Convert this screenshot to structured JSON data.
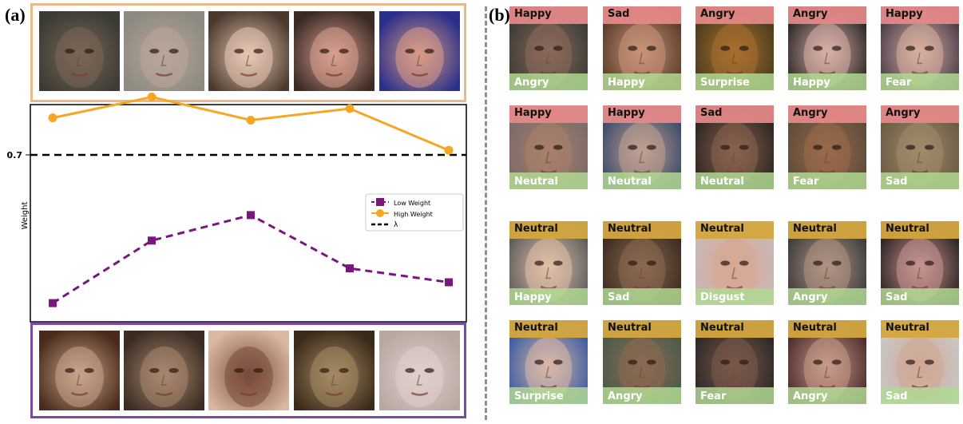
{
  "panel_a": {
    "label": "(a)"
  },
  "panel_b": {
    "label": "(b)"
  },
  "colors": {
    "high": "#f5a623",
    "low": "#7b167e",
    "threshold": "#000000",
    "top_box_border": "#e9b98a",
    "bottom_box_border": "#7b4aa3",
    "tile_top_red": "#e88a8a",
    "tile_top_gold": "#d4a640",
    "tile_bottom_green": "#b0d892"
  },
  "chart_data": {
    "type": "line",
    "x": [
      1,
      2,
      3,
      4,
      5
    ],
    "ylabel": "Weight",
    "threshold": {
      "value": 0.7,
      "label": "0.7",
      "legend": "λ"
    },
    "ylim": [
      0.0,
      1.0
    ],
    "series": [
      {
        "name": "Low Weight",
        "values": [
          0.06,
          0.33,
          0.44,
          0.21,
          0.15
        ],
        "marker": "square",
        "style": "dashed"
      },
      {
        "name": "High Weight",
        "values": [
          0.86,
          0.95,
          0.85,
          0.9,
          0.72
        ],
        "marker": "circle",
        "style": "solid"
      }
    ],
    "legend": [
      "Low Weight",
      "High Weight",
      "λ"
    ],
    "legend_position": "right",
    "grid": false
  },
  "top_faces": [
    {
      "icon": "face-image",
      "c1": "#3b3b34",
      "c2": "#7a6656"
    },
    {
      "icon": "face-image",
      "c1": "#8c8a80",
      "c2": "#b9a59a"
    },
    {
      "icon": "face-image",
      "c1": "#4a3a2e",
      "c2": "#e7c6b4"
    },
    {
      "icon": "face-image",
      "c1": "#3a2a24",
      "c2": "#d9a090"
    },
    {
      "icon": "face-image",
      "c1": "#2a2f8a",
      "c2": "#d89a86"
    }
  ],
  "bottom_faces": [
    {
      "icon": "face-image",
      "c1": "#4a2a1a",
      "c2": "#c9a48c"
    },
    {
      "icon": "face-image",
      "c1": "#3a2c22",
      "c2": "#a88670"
    },
    {
      "icon": "face-image",
      "c1": "#d9b9a0",
      "c2": "#7a4a3a"
    },
    {
      "icon": "face-image",
      "c1": "#3a2a1a",
      "c2": "#a48a62"
    },
    {
      "icon": "face-image",
      "c1": "#b8a8a2",
      "c2": "#e0d0cc"
    }
  ],
  "tiles": [
    {
      "top": "Happy",
      "bottom": "Angry",
      "tone": "red",
      "c1": "#3a3a36",
      "c2": "#8a6a5a"
    },
    {
      "top": "Sad",
      "bottom": "Happy",
      "tone": "red",
      "c1": "#5a3a2a",
      "c2": "#c89478"
    },
    {
      "top": "Angry",
      "bottom": "Surprise",
      "tone": "red",
      "c1": "#4a3a1e",
      "c2": "#a8702e"
    },
    {
      "top": "Angry",
      "bottom": "Happy",
      "tone": "red",
      "c1": "#2a2624",
      "c2": "#d8b0a8"
    },
    {
      "top": "Happy",
      "bottom": "Fear",
      "tone": "red",
      "c1": "#4a3a4a",
      "c2": "#d8b0a0"
    },
    {
      "top": "Happy",
      "bottom": "Neutral",
      "tone": "red",
      "c1": "#7a6a6a",
      "c2": "#a8806a"
    },
    {
      "top": "Happy",
      "bottom": "Neutral",
      "tone": "red",
      "c1": "#3a4a6a",
      "c2": "#c0a090"
    },
    {
      "top": "Sad",
      "bottom": "Neutral",
      "tone": "red",
      "c1": "#2a2420",
      "c2": "#8a6250"
    },
    {
      "top": "Angry",
      "bottom": "Fear",
      "tone": "red",
      "c1": "#5a4a3a",
      "c2": "#9a6a4a"
    },
    {
      "top": "Angry",
      "bottom": "Sad",
      "tone": "red",
      "c1": "#6a5a42",
      "c2": "#a08a6a"
    },
    {
      "top": "Neutral",
      "bottom": "Happy",
      "tone": "gold",
      "c1": "#5a5a5a",
      "c2": "#e0c0a8"
    },
    {
      "top": "Neutral",
      "bottom": "Sad",
      "tone": "gold",
      "c1": "#3a2a20",
      "c2": "#8a6a50"
    },
    {
      "top": "Neutral",
      "bottom": "Disgust",
      "tone": "gold",
      "c1": "#c8b8b8",
      "c2": "#d8a894"
    },
    {
      "top": "Neutral",
      "bottom": "Angry",
      "tone": "gold",
      "c1": "#3a3a3a",
      "c2": "#b09484"
    },
    {
      "top": "Neutral",
      "bottom": "Sad",
      "tone": "gold",
      "c1": "#2a2222",
      "c2": "#c89490"
    },
    {
      "top": "Neutral",
      "bottom": "Surprise",
      "tone": "gold",
      "c1": "#3a5aa0",
      "c2": "#d8b8a8"
    },
    {
      "top": "Neutral",
      "bottom": "Angry",
      "tone": "gold",
      "c1": "#4a5a4a",
      "c2": "#8a6a52"
    },
    {
      "top": "Neutral",
      "bottom": "Fear",
      "tone": "gold",
      "c1": "#2a2626",
      "c2": "#7a5a4a"
    },
    {
      "top": "Neutral",
      "bottom": "Angry",
      "tone": "gold",
      "c1": "#4a2a2a",
      "c2": "#c89a8a"
    },
    {
      "top": "Neutral",
      "bottom": "Sad",
      "tone": "gold",
      "c1": "#c8c8c8",
      "c2": "#d0a894"
    }
  ]
}
